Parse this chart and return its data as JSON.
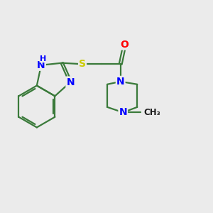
{
  "background_color": "#ebebeb",
  "bond_color": "#3a7a3a",
  "bond_width": 1.6,
  "atom_colors": {
    "N": "#0000ff",
    "O": "#ff0000",
    "S": "#cccc00",
    "C": "#2a2a2a"
  },
  "font_size_label": 10,
  "font_size_small": 8,
  "figsize": [
    3.0,
    3.0
  ],
  "dpi": 100
}
